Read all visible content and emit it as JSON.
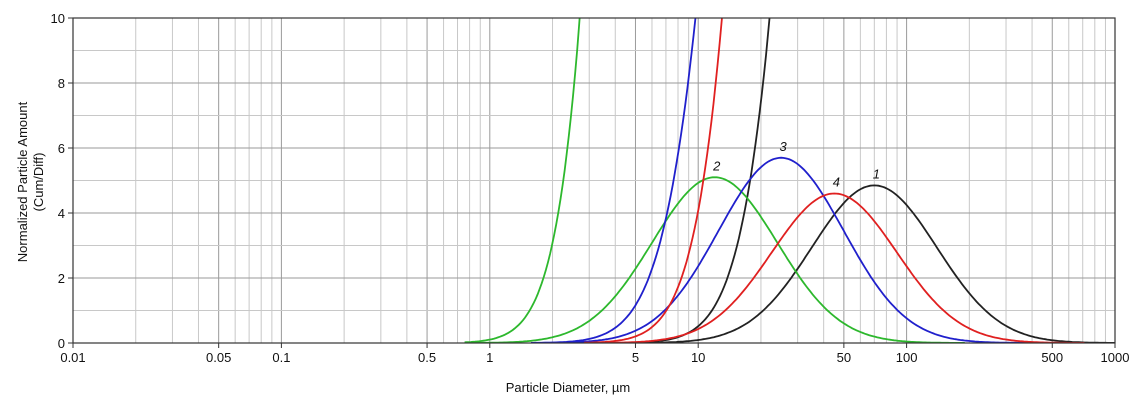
{
  "chart_data": {
    "type": "line",
    "title": "",
    "xlabel": "Particle Diameter, µm",
    "ylabel_line1": "Normalized Particle Amount",
    "ylabel_line2": "(Cum/Diff)",
    "x_scale": "log",
    "xlim": [
      0.01,
      1000
    ],
    "ylim": [
      0,
      10
    ],
    "grid": true,
    "x_ticks": [
      {
        "value": 0.01,
        "label": "0.01"
      },
      {
        "value": 0.05,
        "label": "0.05"
      },
      {
        "value": 0.1,
        "label": "0.1"
      },
      {
        "value": 0.5,
        "label": "0.5"
      },
      {
        "value": 1,
        "label": "1"
      },
      {
        "value": 5,
        "label": "5"
      },
      {
        "value": 10,
        "label": "10"
      },
      {
        "value": 50,
        "label": "50"
      },
      {
        "value": 100,
        "label": "100"
      },
      {
        "value": 500,
        "label": "500"
      },
      {
        "value": 1000,
        "label": "1000"
      }
    ],
    "y_ticks": [
      {
        "value": 0,
        "label": "0"
      },
      {
        "value": 2,
        "label": "2"
      },
      {
        "value": 4,
        "label": "4"
      },
      {
        "value": 6,
        "label": "6"
      },
      {
        "value": 8,
        "label": "8"
      },
      {
        "value": 10,
        "label": "10"
      }
    ],
    "series": [
      {
        "label": "1",
        "color": "#222222",
        "diff_peak_x": 70,
        "diff_peak_y": 4.85,
        "cumulative_x_at_top": 22
      },
      {
        "label": "2",
        "color": "#2db82d",
        "diff_peak_x": 12,
        "diff_peak_y": 5.1,
        "cumulative_x_at_top": 2.7
      },
      {
        "label": "3",
        "color": "#2020cc",
        "diff_peak_x": 25,
        "diff_peak_y": 5.7,
        "cumulative_x_at_top": 9.7
      },
      {
        "label": "4",
        "color": "#e02020",
        "diff_peak_x": 45,
        "diff_peak_y": 4.6,
        "cumulative_x_at_top": 13
      }
    ]
  }
}
